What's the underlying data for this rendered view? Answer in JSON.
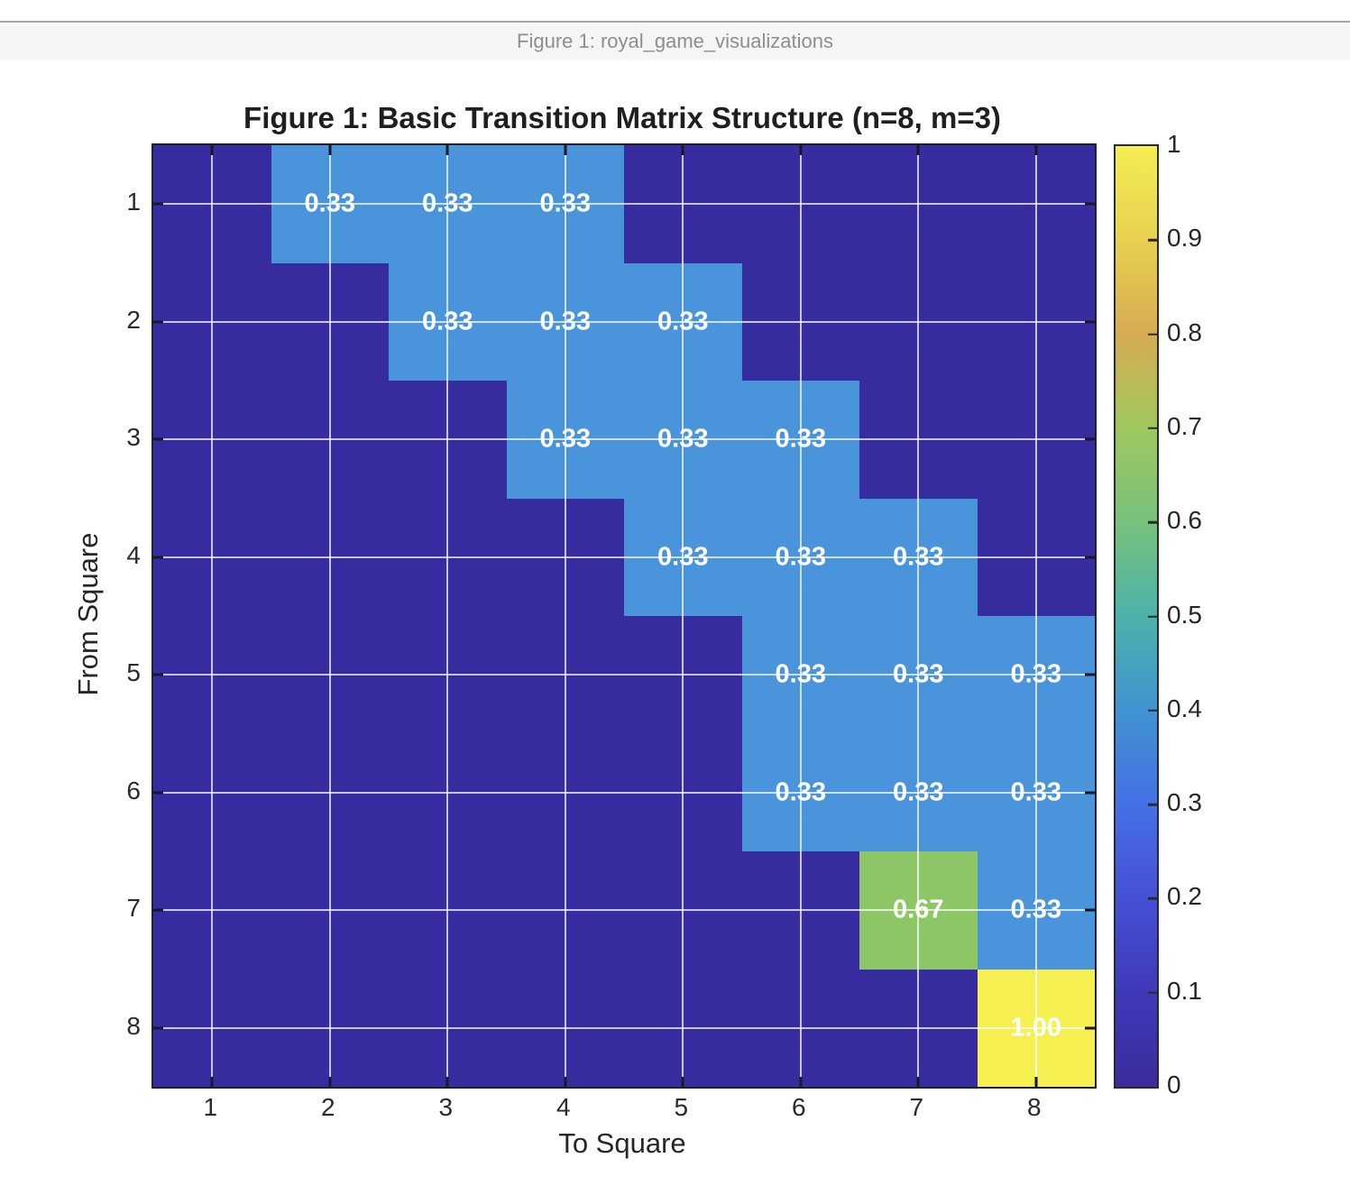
{
  "window": {
    "title": "Figure 1: royal_game_visualizations"
  },
  "chart_data": {
    "type": "heatmap",
    "title": "Figure 1: Basic Transition Matrix Structure (n=8, m=3)",
    "xlabel": "To Square",
    "ylabel": "From Square",
    "x_tick_labels": [
      "1",
      "2",
      "3",
      "4",
      "5",
      "6",
      "7",
      "8"
    ],
    "y_tick_labels": [
      "1",
      "2",
      "3",
      "4",
      "5",
      "6",
      "7",
      "8"
    ],
    "value_range": [
      0,
      1
    ],
    "grid": true,
    "matrix": [
      [
        0,
        0.33,
        0.33,
        0.33,
        0,
        0,
        0,
        0
      ],
      [
        0,
        0,
        0.33,
        0.33,
        0.33,
        0,
        0,
        0
      ],
      [
        0,
        0,
        0,
        0.33,
        0.33,
        0.33,
        0,
        0
      ],
      [
        0,
        0,
        0,
        0,
        0.33,
        0.33,
        0.33,
        0
      ],
      [
        0,
        0,
        0,
        0,
        0,
        0.33,
        0.33,
        0.33
      ],
      [
        0,
        0,
        0,
        0,
        0,
        0.33,
        0.33,
        0.33
      ],
      [
        0,
        0,
        0,
        0,
        0,
        0,
        0.67,
        0.33
      ],
      [
        0,
        0,
        0,
        0,
        0,
        0,
        0,
        1
      ]
    ],
    "cell_labels": [
      [
        "",
        "0.33",
        "0.33",
        "0.33",
        "",
        "",
        "",
        ""
      ],
      [
        "",
        "",
        "0.33",
        "0.33",
        "0.33",
        "",
        "",
        ""
      ],
      [
        "",
        "",
        "",
        "0.33",
        "0.33",
        "0.33",
        "",
        ""
      ],
      [
        "",
        "",
        "",
        "",
        "0.33",
        "0.33",
        "0.33",
        ""
      ],
      [
        "",
        "",
        "",
        "",
        "",
        "0.33",
        "0.33",
        "0.33"
      ],
      [
        "",
        "",
        "",
        "",
        "",
        "0.33",
        "0.33",
        "0.33"
      ],
      [
        "",
        "",
        "",
        "",
        "",
        "",
        "0.67",
        "0.33"
      ],
      [
        "",
        "",
        "",
        "",
        "",
        "",
        "",
        "1.00"
      ]
    ],
    "value_colors": {
      "0": "#372BA0",
      "0.33": "#4A94DC",
      "0.67": "#8DC765",
      "1": "#F6EF52"
    },
    "colorbar": {
      "tick_values": [
        0,
        0.1,
        0.2,
        0.3,
        0.4,
        0.5,
        0.6,
        0.7,
        0.8,
        0.9,
        1
      ],
      "tick_labels": [
        "0",
        "0.1",
        "0.2",
        "0.3",
        "0.4",
        "0.5",
        "0.6",
        "0.7",
        "0.8",
        "0.9",
        "1"
      ],
      "legend_position": "right"
    },
    "colormap_stops": [
      {
        "v": 0.0,
        "color": "#3A2C9D"
      },
      {
        "v": 0.1,
        "color": "#3E39B8"
      },
      {
        "v": 0.2,
        "color": "#4650D5"
      },
      {
        "v": 0.3,
        "color": "#4570E6"
      },
      {
        "v": 0.4,
        "color": "#4093D0"
      },
      {
        "v": 0.5,
        "color": "#4DB2AA"
      },
      {
        "v": 0.6,
        "color": "#77C17C"
      },
      {
        "v": 0.7,
        "color": "#A0C75E"
      },
      {
        "v": 0.8,
        "color": "#D6AC52"
      },
      {
        "v": 0.9,
        "color": "#E8D050"
      },
      {
        "v": 1.0,
        "color": "#F5EE54"
      }
    ]
  }
}
